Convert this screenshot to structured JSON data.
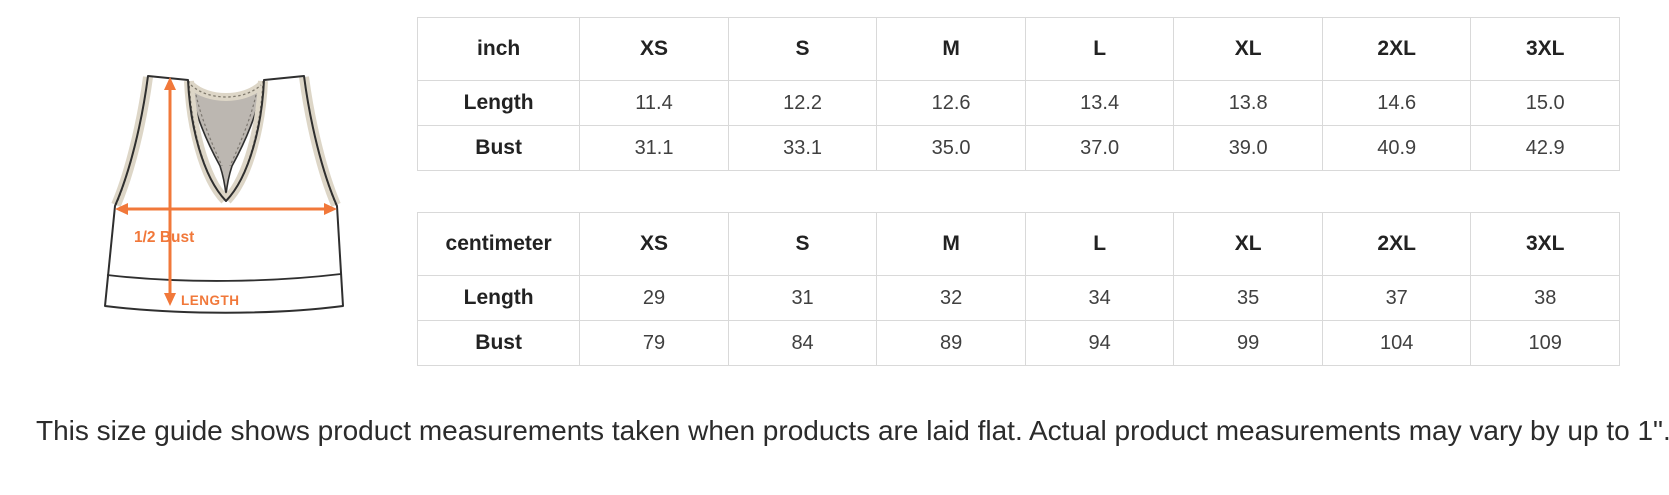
{
  "colors": {
    "accent_orange": "#F1783A",
    "trim_beige": "#DDD6C7",
    "panel_gray": "#BCB7B1",
    "outline_dark": "#2F2F2F",
    "stitch": "#817B6E",
    "table_border": "#D9D9D9"
  },
  "illustration": {
    "description": "racerback-sports-bra-flat-sketch",
    "bust_label": "1/2 Bust",
    "length_label": "LENGTH"
  },
  "tables": [
    {
      "unit": "inch",
      "sizes": [
        "XS",
        "S",
        "M",
        "L",
        "XL",
        "2XL",
        "3XL"
      ],
      "rows": [
        {
          "label": "Length",
          "values": [
            "11.4",
            "12.2",
            "12.6",
            "13.4",
            "13.8",
            "14.6",
            "15.0"
          ]
        },
        {
          "label": "Bust",
          "values": [
            "31.1",
            "33.1",
            "35.0",
            "37.0",
            "39.0",
            "40.9",
            "42.9"
          ]
        }
      ]
    },
    {
      "unit": "centimeter",
      "sizes": [
        "XS",
        "S",
        "M",
        "L",
        "XL",
        "2XL",
        "3XL"
      ],
      "rows": [
        {
          "label": "Length",
          "values": [
            "29",
            "31",
            "32",
            "34",
            "35",
            "37",
            "38"
          ]
        },
        {
          "label": "Bust",
          "values": [
            "79",
            "84",
            "89",
            "94",
            "99",
            "104",
            "109"
          ]
        }
      ]
    }
  ],
  "footnote": "This size guide shows product measurements taken when products are laid flat. Actual product measurements may vary by up to 1\"."
}
